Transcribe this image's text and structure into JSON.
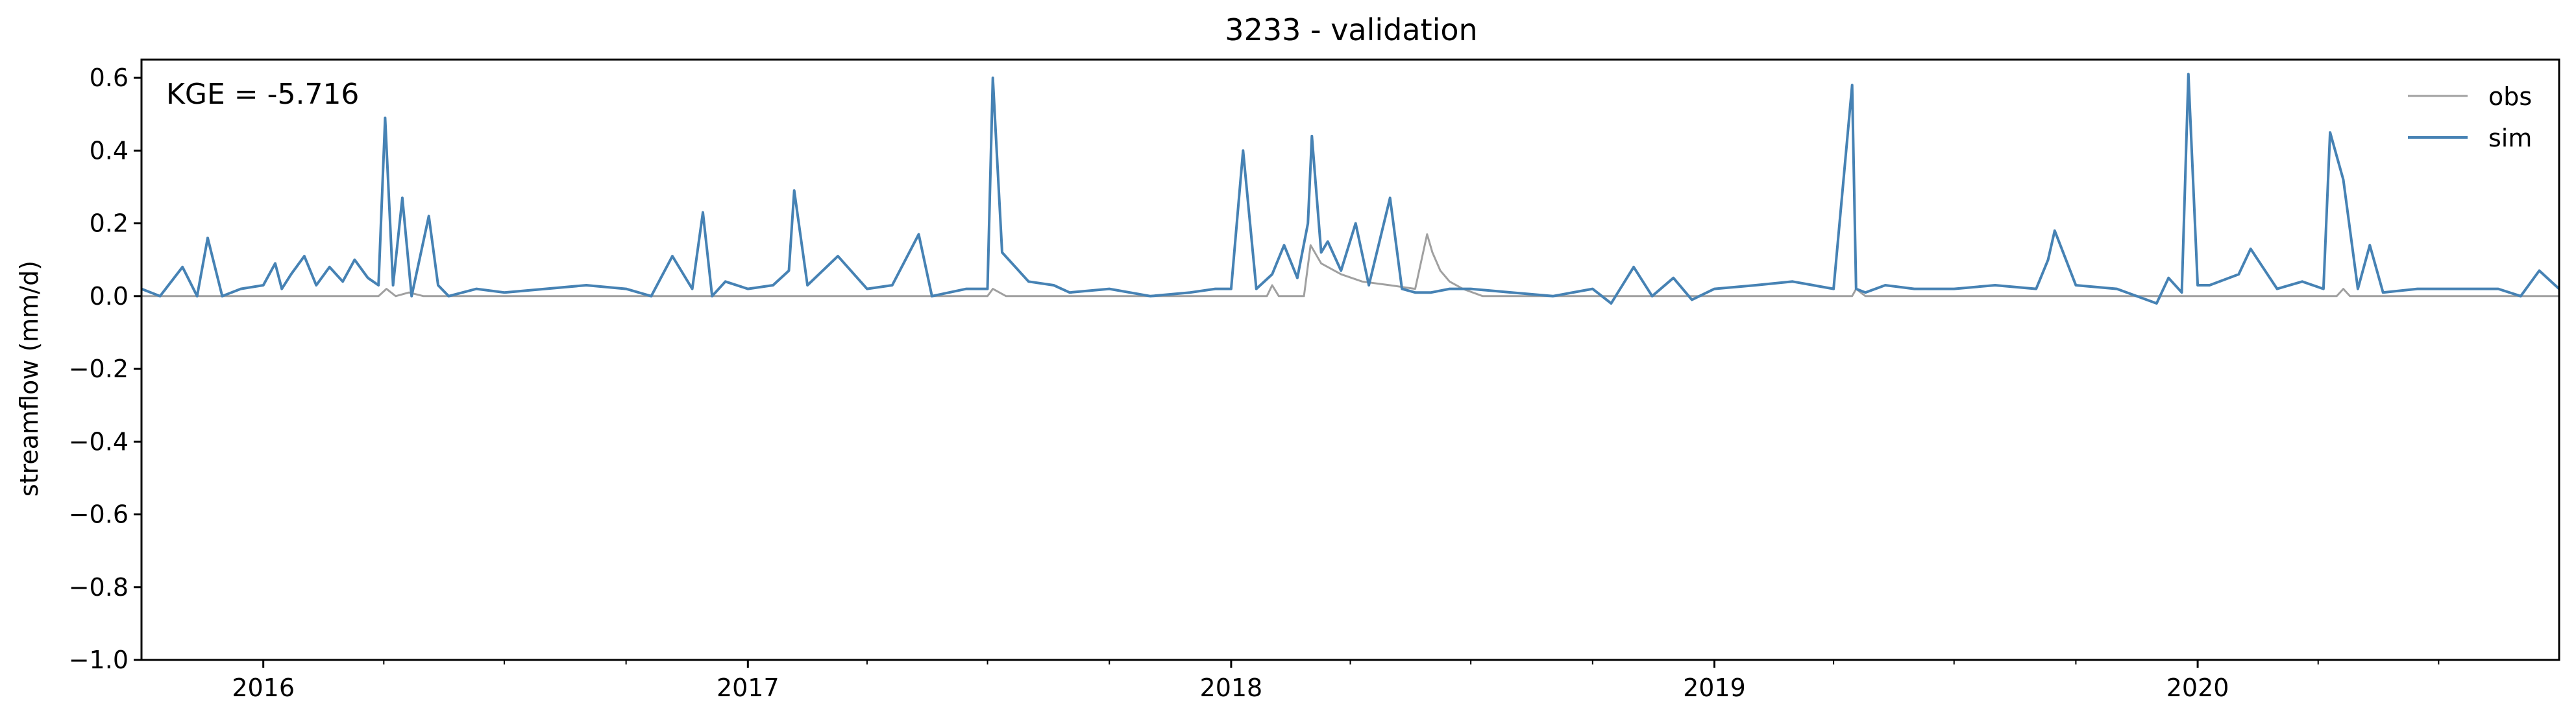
{
  "chart_data": {
    "type": "line",
    "title": "3233 - validation",
    "xlabel": "",
    "ylabel": "streamflow (mm/d)",
    "annotation": "KGE = -5.716",
    "xlim": [
      "2015-10-01",
      "2020-09-30"
    ],
    "ylim": [
      -1.0,
      0.65
    ],
    "yticks": [
      -1.0,
      -0.8,
      -0.6,
      -0.4,
      -0.2,
      0.0,
      0.2,
      0.4,
      0.6
    ],
    "ytick_labels": [
      "−1.0",
      "−0.8",
      "−0.6",
      "−0.4",
      "−0.2",
      "0.0",
      "0.2",
      "0.4",
      "0.6"
    ],
    "xticks": [
      "2016-01-01",
      "2017-01-01",
      "2018-01-01",
      "2019-01-01",
      "2020-01-01"
    ],
    "xtick_labels": [
      "2016",
      "2017",
      "2018",
      "2019",
      "2020"
    ],
    "grid": false,
    "legend_position": "top-right",
    "series": [
      {
        "name": "obs",
        "color": "#a0a0a0",
        "x": [
          "2015-10-01",
          "2016-03-28",
          "2016-04-03",
          "2016-04-10",
          "2016-04-20",
          "2016-05-01",
          "2017-07-01",
          "2017-07-05",
          "2017-07-15",
          "2018-01-28",
          "2018-02-01",
          "2018-02-06",
          "2018-02-25",
          "2018-03-02",
          "2018-03-10",
          "2018-03-25",
          "2018-04-10",
          "2018-05-01",
          "2018-05-20",
          "2018-05-29",
          "2018-06-02",
          "2018-06-08",
          "2018-06-15",
          "2018-06-25",
          "2018-07-10",
          "2019-04-15",
          "2019-04-18",
          "2019-04-25",
          "2020-04-15",
          "2020-04-20",
          "2020-04-25",
          "2020-09-30"
        ],
        "y": [
          0.0,
          0.0,
          0.02,
          0.0,
          0.01,
          0.0,
          0.0,
          0.02,
          0.0,
          0.0,
          0.03,
          0.0,
          0.0,
          0.14,
          0.09,
          0.06,
          0.04,
          0.03,
          0.02,
          0.17,
          0.12,
          0.07,
          0.04,
          0.02,
          0.0,
          0.0,
          0.02,
          0.0,
          0.0,
          0.02,
          0.0,
          0.0
        ]
      },
      {
        "name": "sim",
        "color": "#4682b4",
        "x": [
          "2015-10-01",
          "2015-10-15",
          "2015-11-01",
          "2015-11-12",
          "2015-11-20",
          "2015-12-01",
          "2015-12-15",
          "2016-01-01",
          "2016-01-10",
          "2016-01-15",
          "2016-01-22",
          "2016-02-01",
          "2016-02-10",
          "2016-02-20",
          "2016-03-01",
          "2016-03-10",
          "2016-03-20",
          "2016-03-28",
          "2016-04-02",
          "2016-04-08",
          "2016-04-15",
          "2016-04-22",
          "2016-05-05",
          "2016-05-12",
          "2016-05-20",
          "2016-06-10",
          "2016-07-01",
          "2016-08-01",
          "2016-09-01",
          "2016-10-01",
          "2016-10-20",
          "2016-11-05",
          "2016-11-20",
          "2016-11-28",
          "2016-12-05",
          "2016-12-15",
          "2017-01-01",
          "2017-01-20",
          "2017-02-01",
          "2017-02-05",
          "2017-02-15",
          "2017-03-10",
          "2017-04-01",
          "2017-04-20",
          "2017-05-10",
          "2017-05-20",
          "2017-06-15",
          "2017-07-01",
          "2017-07-05",
          "2017-07-12",
          "2017-08-01",
          "2017-08-20",
          "2017-09-01",
          "2017-10-01",
          "2017-11-01",
          "2017-12-01",
          "2017-12-20",
          "2018-01-01",
          "2018-01-10",
          "2018-01-20",
          "2018-02-01",
          "2018-02-10",
          "2018-02-20",
          "2018-02-28",
          "2018-03-03",
          "2018-03-10",
          "2018-03-15",
          "2018-03-25",
          "2018-04-05",
          "2018-04-15",
          "2018-05-01",
          "2018-05-10",
          "2018-05-20",
          "2018-06-01",
          "2018-06-15",
          "2018-07-01",
          "2018-08-01",
          "2018-09-01",
          "2018-10-01",
          "2018-10-15",
          "2018-11-01",
          "2018-11-15",
          "2018-12-01",
          "2018-12-15",
          "2019-01-01",
          "2019-02-01",
          "2019-03-01",
          "2019-04-01",
          "2019-04-15",
          "2019-04-18",
          "2019-04-25",
          "2019-05-10",
          "2019-06-01",
          "2019-07-01",
          "2019-08-01",
          "2019-09-01",
          "2019-09-10",
          "2019-09-15",
          "2019-10-01",
          "2019-11-01",
          "2019-12-01",
          "2019-12-10",
          "2019-12-20",
          "2019-12-25",
          "2020-01-01",
          "2020-01-10",
          "2020-02-01",
          "2020-02-10",
          "2020-03-01",
          "2020-03-20",
          "2020-04-05",
          "2020-04-10",
          "2020-04-20",
          "2020-05-01",
          "2020-05-10",
          "2020-05-20",
          "2020-06-15",
          "2020-07-15",
          "2020-08-15",
          "2020-09-01",
          "2020-09-15",
          "2020-09-30"
        ],
        "y": [
          0.02,
          0.0,
          0.08,
          0.0,
          0.16,
          0.0,
          0.02,
          0.03,
          0.09,
          0.02,
          0.06,
          0.11,
          0.03,
          0.08,
          0.04,
          0.1,
          0.05,
          0.03,
          0.49,
          0.03,
          0.27,
          0.0,
          0.22,
          0.03,
          0.0,
          0.02,
          0.01,
          0.02,
          0.03,
          0.02,
          0.0,
          0.11,
          0.02,
          0.23,
          0.0,
          0.04,
          0.02,
          0.03,
          0.07,
          0.29,
          0.03,
          0.11,
          0.02,
          0.03,
          0.17,
          0.0,
          0.02,
          0.02,
          0.6,
          0.12,
          0.04,
          0.03,
          0.01,
          0.02,
          0.0,
          0.01,
          0.02,
          0.02,
          0.4,
          0.02,
          0.06,
          0.14,
          0.05,
          0.2,
          0.44,
          0.12,
          0.15,
          0.07,
          0.2,
          0.03,
          0.27,
          0.02,
          0.01,
          0.01,
          0.02,
          0.02,
          0.01,
          0.0,
          0.02,
          -0.02,
          0.08,
          0.0,
          0.05,
          -0.01,
          0.02,
          0.03,
          0.04,
          0.02,
          0.58,
          0.02,
          0.01,
          0.03,
          0.02,
          0.02,
          0.03,
          0.02,
          0.1,
          0.18,
          0.03,
          0.02,
          -0.02,
          0.05,
          0.01,
          0.61,
          0.03,
          0.03,
          0.06,
          0.13,
          0.02,
          0.04,
          0.02,
          0.45,
          0.32,
          0.02,
          0.14,
          0.01,
          0.02,
          0.02,
          0.02,
          0.0,
          0.07,
          0.02
        ]
      }
    ]
  }
}
